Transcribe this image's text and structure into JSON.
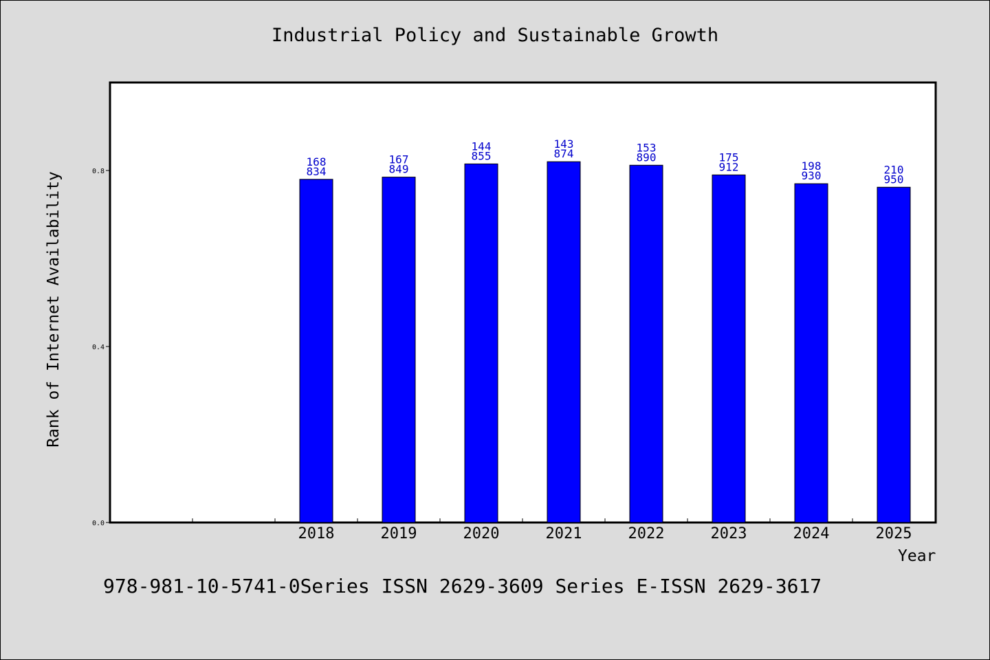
{
  "chart_data": {
    "type": "bar",
    "title": "Industrial Policy and Sustainable Growth",
    "xlabel": "Year",
    "ylabel": "Rank of Internet Availability",
    "ylim": [
      0,
      1.0
    ],
    "yticks": [
      "0.0",
      "0.4",
      "0.8"
    ],
    "categories": [
      "2018",
      "2019",
      "2020",
      "2021",
      "2022",
      "2023",
      "2024",
      "2025"
    ],
    "values": [
      0.78,
      0.785,
      0.815,
      0.82,
      0.812,
      0.79,
      0.77,
      0.762
    ],
    "label_top": [
      "168",
      "167",
      "144",
      "143",
      "153",
      "175",
      "198",
      "210"
    ],
    "label_bottom": [
      "834",
      "849",
      "855",
      "874",
      "890",
      "912",
      "930",
      "950"
    ],
    "bar_color": "#0000ff",
    "label_color": "#0000cc",
    "grid": false
  },
  "footer": {
    "text": "978-981-10-5741-0Series ISSN 2629-3609 Series E-ISSN 2629-3617"
  }
}
